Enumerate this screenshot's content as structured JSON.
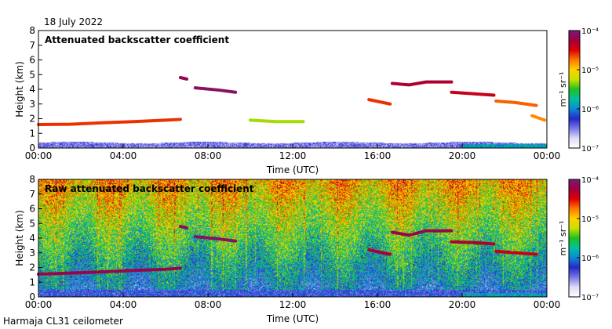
{
  "figure": {
    "date": "18 July 2022",
    "instrument": "Harmaja CL31 ceilometer"
  },
  "colors": {
    "frame": "#000000",
    "background": "#ffffff",
    "colormap": [
      "#ffffff",
      "#dcdcf5",
      "#7878e8",
      "#2828c8",
      "#0a8ad8",
      "#00c0a0",
      "#20c020",
      "#c8e000",
      "#ffd200",
      "#ff7800",
      "#e00000",
      "#a00040",
      "#7a1a7a"
    ]
  },
  "chart_data": [
    {
      "type": "heatmap",
      "title": "Attenuated backscatter coefficient",
      "xlabel": "Time (UTC)",
      "ylabel": "Height (km)",
      "x_ticks": [
        "00:00",
        "04:00",
        "08:00",
        "12:00",
        "16:00",
        "20:00",
        "00:00"
      ],
      "x_range_hours": [
        0,
        24
      ],
      "y_ticks": [
        "0",
        "1",
        "2",
        "3",
        "4",
        "5",
        "6",
        "7",
        "8"
      ],
      "ylim": [
        0,
        8
      ],
      "colorbar": {
        "label": "m⁻¹ sr⁻¹",
        "scale": "log",
        "tick_labels": [
          "10⁻⁷",
          "10⁻⁶",
          "10⁻⁵",
          "10⁻⁴"
        ],
        "tick_exponents": [
          -7,
          -6,
          -5,
          -4
        ]
      },
      "features": [
        {
          "name": "cloud base layer",
          "points": [
            [
              0.0,
              1.6
            ],
            [
              1.5,
              1.62
            ],
            [
              3.0,
              1.72
            ],
            [
              4.5,
              1.8
            ],
            [
              6.0,
              1.9
            ],
            [
              6.7,
              1.95
            ]
          ],
          "log_value": -4.6
        },
        {
          "name": "mid cloud",
          "points": [
            [
              6.7,
              4.8
            ],
            [
              7.0,
              4.7
            ]
          ],
          "log_value": -4.2
        },
        {
          "name": "mid cloud",
          "points": [
            [
              7.4,
              4.1
            ],
            [
              8.5,
              3.95
            ],
            [
              9.3,
              3.8
            ]
          ],
          "log_value": -4.1
        },
        {
          "name": "cloud fragments",
          "points": [
            [
              10.0,
              1.9
            ],
            [
              11.2,
              1.8
            ],
            [
              12.5,
              1.8
            ]
          ],
          "log_value": -5.3
        },
        {
          "name": "mid cloud",
          "points": [
            [
              15.6,
              3.3
            ],
            [
              16.6,
              3.0
            ]
          ],
          "log_value": -4.6
        },
        {
          "name": "mid cloud",
          "points": [
            [
              16.7,
              4.4
            ],
            [
              17.5,
              4.3
            ],
            [
              18.3,
              4.5
            ],
            [
              19.5,
              4.5
            ]
          ],
          "log_value": -4.3
        },
        {
          "name": "mid cloud",
          "points": [
            [
              19.5,
              3.8
            ],
            [
              20.5,
              3.7
            ],
            [
              21.5,
              3.6
            ]
          ],
          "log_value": -4.4
        },
        {
          "name": "low cloud",
          "points": [
            [
              21.6,
              3.2
            ],
            [
              22.5,
              3.1
            ],
            [
              23.5,
              2.9
            ]
          ],
          "log_value": -4.7
        },
        {
          "name": "low cloud",
          "points": [
            [
              23.3,
              2.2
            ],
            [
              23.9,
              1.9
            ]
          ],
          "log_value": -4.8
        }
      ],
      "boundary_layer_height_km": 0.4,
      "noise_field": false
    },
    {
      "type": "heatmap",
      "title": "Raw attenuated backscatter coefficient",
      "xlabel": "Time (UTC)",
      "ylabel": "Height (km)",
      "x_ticks": [
        "00:00",
        "04:00",
        "08:00",
        "12:00",
        "16:00",
        "20:00",
        "00:00"
      ],
      "x_range_hours": [
        0,
        24
      ],
      "y_ticks": [
        "0",
        "1",
        "2",
        "3",
        "4",
        "5",
        "6",
        "7",
        "8"
      ],
      "ylim": [
        0,
        8
      ],
      "colorbar": {
        "label": "m⁻¹ sr⁻¹",
        "scale": "log",
        "tick_labels": [
          "10⁻⁷",
          "10⁻⁶",
          "10⁻⁵",
          "10⁻⁴"
        ],
        "tick_exponents": [
          -7,
          -6,
          -5,
          -4
        ]
      },
      "features": [
        {
          "name": "cloud base layer",
          "points": [
            [
              0.0,
              1.55
            ],
            [
              1.5,
              1.62
            ],
            [
              3.0,
              1.7
            ],
            [
              4.5,
              1.8
            ],
            [
              6.0,
              1.88
            ],
            [
              6.7,
              1.95
            ]
          ],
          "log_value": -4.2
        },
        {
          "name": "mid cloud",
          "points": [
            [
              6.7,
              4.8
            ],
            [
              7.0,
              4.7
            ]
          ],
          "log_value": -4.1
        },
        {
          "name": "mid cloud",
          "points": [
            [
              7.4,
              4.1
            ],
            [
              8.5,
              3.95
            ],
            [
              9.3,
              3.8
            ]
          ],
          "log_value": -4.1
        },
        {
          "name": "mid cloud",
          "points": [
            [
              15.6,
              3.2
            ],
            [
              16.6,
              2.9
            ]
          ],
          "log_value": -4.3
        },
        {
          "name": "mid cloud",
          "points": [
            [
              16.7,
              4.4
            ],
            [
              17.5,
              4.2
            ],
            [
              18.3,
              4.5
            ],
            [
              19.5,
              4.5
            ]
          ],
          "log_value": -4.2
        },
        {
          "name": "mid cloud",
          "points": [
            [
              19.5,
              3.75
            ],
            [
              20.5,
              3.7
            ],
            [
              21.5,
              3.6
            ]
          ],
          "log_value": -4.3
        },
        {
          "name": "low cloud",
          "points": [
            [
              21.6,
              3.1
            ],
            [
              22.5,
              3.0
            ],
            [
              23.5,
              2.9
            ]
          ],
          "log_value": -4.4
        }
      ],
      "boundary_layer_height_km": 0.5,
      "noise_field": true
    }
  ]
}
